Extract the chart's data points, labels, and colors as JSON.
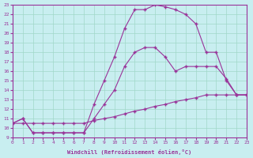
{
  "background_color": "#c8eef0",
  "grid_color": "#a0d8c8",
  "line_color": "#993399",
  "marker": "+",
  "xlabel": "Windchill (Refroidissement éolien,°C)",
  "xlim": [
    0,
    23
  ],
  "ylim": [
    9,
    23
  ],
  "xticks": [
    0,
    1,
    2,
    3,
    4,
    5,
    6,
    7,
    8,
    9,
    10,
    11,
    12,
    13,
    14,
    15,
    16,
    17,
    18,
    19,
    20,
    21,
    22,
    23
  ],
  "yticks": [
    9,
    10,
    11,
    12,
    13,
    14,
    15,
    16,
    17,
    18,
    19,
    20,
    21,
    22,
    23
  ],
  "line1_x": [
    0,
    1,
    2,
    3,
    4,
    5,
    6,
    7,
    8,
    9,
    10,
    11,
    12,
    13,
    14,
    15,
    16,
    17,
    18,
    19,
    20,
    21,
    22,
    23
  ],
  "line1_y": [
    10.5,
    10.5,
    10.5,
    10.5,
    10.5,
    10.5,
    10.5,
    10.5,
    10.8,
    11.0,
    11.2,
    11.5,
    11.8,
    12.0,
    12.3,
    12.5,
    12.8,
    13.0,
    13.2,
    13.5,
    13.5,
    13.5,
    13.5,
    13.5
  ],
  "line2_x": [
    0,
    1,
    2,
    3,
    4,
    5,
    6,
    7,
    8,
    9,
    10,
    11,
    12,
    13,
    14,
    15,
    16,
    17,
    18,
    19,
    20,
    21,
    22,
    23
  ],
  "line2_y": [
    10.5,
    11.0,
    9.5,
    9.5,
    9.5,
    9.5,
    9.5,
    9.5,
    12.5,
    15.0,
    17.5,
    20.5,
    22.5,
    22.5,
    23.0,
    22.8,
    22.5,
    22.0,
    21.0,
    18.0,
    18.0,
    15.0,
    13.5,
    13.5
  ],
  "line3_x": [
    0,
    1,
    2,
    3,
    4,
    5,
    6,
    7,
    8,
    9,
    10,
    11,
    12,
    13,
    14,
    15,
    16,
    17,
    18,
    19,
    20,
    21,
    22,
    23
  ],
  "line3_y": [
    10.5,
    11.0,
    9.5,
    9.5,
    9.5,
    9.5,
    9.5,
    9.5,
    11.0,
    12.5,
    14.0,
    16.5,
    18.0,
    18.5,
    18.5,
    17.5,
    16.0,
    16.5,
    16.5,
    16.5,
    16.5,
    15.2,
    13.5,
    13.5
  ]
}
